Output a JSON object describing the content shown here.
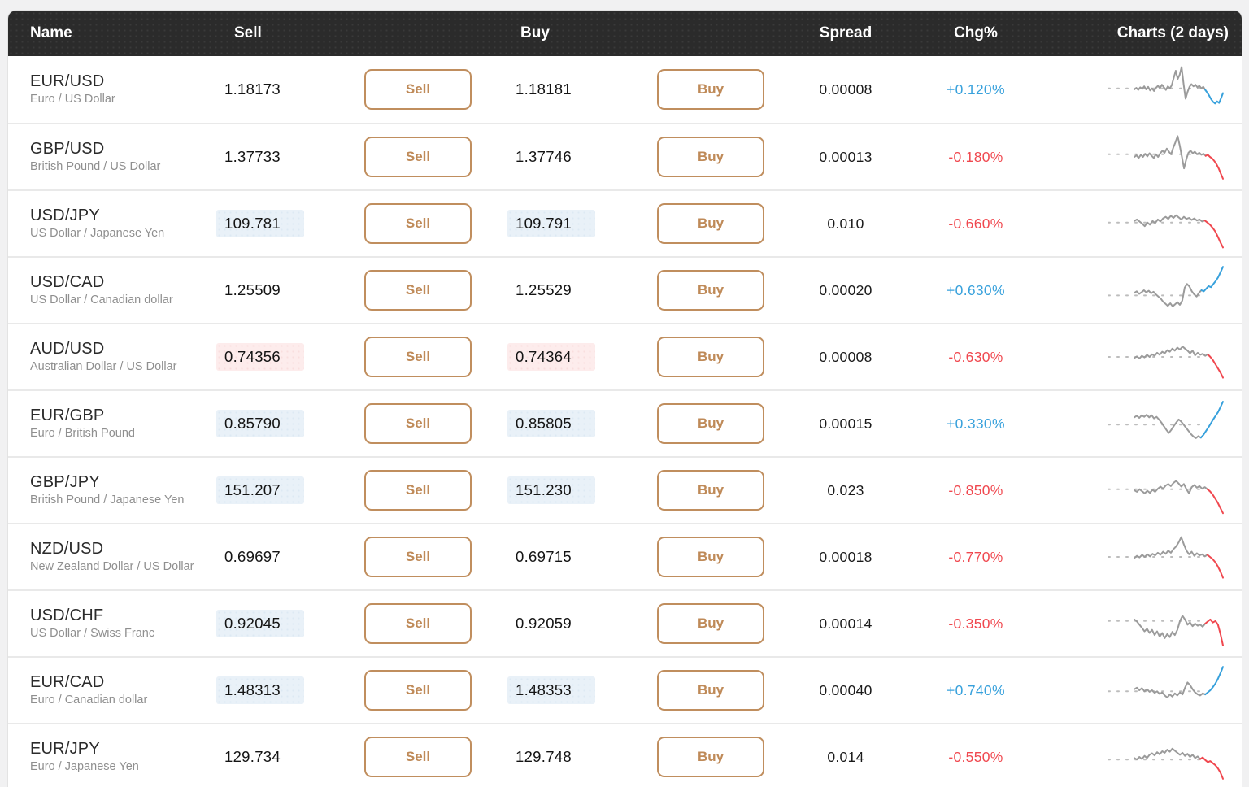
{
  "header": {
    "name": "Name",
    "sell": "Sell",
    "buy": "Buy",
    "spread": "Spread",
    "chg": "Chg%",
    "charts": "Charts (2 days)"
  },
  "buttons": {
    "sell": "Sell",
    "buy": "Buy"
  },
  "colors": {
    "up": "#38a1dc",
    "down": "#f0484f",
    "line": "#9b9b9b",
    "baseline": "#bdbdbd",
    "accent": "#c08e5e",
    "header_bg": "#2b2b2b",
    "highlight_blue": "#e9f1f8",
    "highlight_pink": "#fdecec"
  },
  "rows": [
    {
      "pair": "EUR/USD",
      "subtitle": "Euro / US Dollar",
      "sell": "1.18173",
      "buy": "1.18181",
      "sell_hl": "none",
      "buy_hl": "none",
      "spread": "0.00008",
      "chg": "+0.120%",
      "chg_dir": "up",
      "chart": {
        "baseline": 52,
        "split": 36,
        "points": [
          50,
          53,
          49,
          54,
          51,
          56,
          50,
          55,
          48,
          52,
          47,
          53,
          57,
          52,
          59,
          54,
          49,
          56,
          52,
          58,
          72,
          86,
          70,
          78,
          93,
          60,
          32,
          45,
          55,
          60,
          56,
          59,
          54,
          57,
          52,
          55,
          49,
          44,
          38,
          31,
          26,
          23,
          27,
          24,
          33,
          43
        ]
      }
    },
    {
      "pair": "GBP/USD",
      "subtitle": "British Pound / US Dollar",
      "sell": "1.37733",
      "buy": "1.37746",
      "sell_hl": "none",
      "buy_hl": "none",
      "spread": "0.00013",
      "chg": "-0.180%",
      "chg_dir": "down",
      "chart": {
        "baseline": 55,
        "split": 33,
        "points": [
          50,
          53,
          48,
          54,
          50,
          56,
          51,
          57,
          52,
          48,
          55,
          50,
          57,
          62,
          58,
          66,
          60,
          55,
          68,
          78,
          90,
          72,
          50,
          28,
          45,
          58,
          62,
          57,
          60,
          55,
          58,
          54,
          56,
          52,
          54,
          50,
          47,
          42,
          36,
          28,
          18,
          8
        ]
      }
    },
    {
      "pair": "USD/JPY",
      "subtitle": "US Dollar / Japanese Yen",
      "sell": "109.781",
      "buy": "109.791",
      "sell_hl": "blue",
      "buy_hl": "blue",
      "spread": "0.010",
      "chg": "-0.660%",
      "chg_dir": "down",
      "chart": {
        "baseline": 52,
        "split": 27,
        "points": [
          55,
          58,
          54,
          50,
          45,
          52,
          48,
          55,
          51,
          58,
          54,
          60,
          63,
          59,
          65,
          61,
          66,
          62,
          58,
          63,
          59,
          61,
          57,
          60,
          56,
          58,
          54,
          56,
          52,
          48,
          42,
          35,
          25,
          14,
          4
        ]
      }
    },
    {
      "pair": "USD/CAD",
      "subtitle": "US Dollar / Canadian dollar",
      "sell": "1.25509",
      "buy": "1.25529",
      "sell_hl": "none",
      "buy_hl": "none",
      "spread": "0.00020",
      "chg": "+0.630%",
      "chg_dir": "up",
      "chart": {
        "baseline": 40,
        "split": 28,
        "points": [
          45,
          48,
          43,
          46,
          50,
          46,
          49,
          44,
          47,
          42,
          38,
          34,
          28,
          24,
          20,
          25,
          19,
          23,
          27,
          22,
          30,
          55,
          62,
          57,
          48,
          42,
          38,
          45,
          50,
          48,
          53,
          58,
          56,
          62,
          68,
          75,
          85,
          95
        ]
      }
    },
    {
      "pair": "AUD/USD",
      "subtitle": "Australian Dollar / US Dollar",
      "sell": "0.74356",
      "buy": "0.74364",
      "sell_hl": "pink",
      "buy_hl": "pink",
      "spread": "0.00008",
      "chg": "-0.630%",
      "chg_dir": "down",
      "chart": {
        "baseline": 50,
        "split": 29,
        "points": [
          48,
          51,
          47,
          52,
          49,
          54,
          50,
          55,
          52,
          58,
          54,
          60,
          57,
          63,
          60,
          66,
          62,
          68,
          64,
          70,
          66,
          62,
          57,
          62,
          53,
          58,
          54,
          56,
          52,
          55,
          50,
          44,
          36,
          28,
          20,
          10
        ]
      }
    },
    {
      "pair": "EUR/GBP",
      "subtitle": "Euro / British Pound",
      "sell": "0.85790",
      "buy": "0.85805",
      "sell_hl": "blue",
      "buy_hl": "blue",
      "spread": "0.00015",
      "chg": "+0.330%",
      "chg_dir": "up",
      "chart": {
        "baseline": 48,
        "split": 27,
        "points": [
          62,
          65,
          61,
          66,
          63,
          67,
          62,
          66,
          60,
          63,
          58,
          52,
          45,
          38,
          32,
          38,
          45,
          52,
          58,
          54,
          48,
          42,
          36,
          30,
          25,
          22,
          26,
          23,
          28,
          35,
          42,
          50,
          58,
          65,
          72,
          82,
          92
        ]
      }
    },
    {
      "pair": "GBP/JPY",
      "subtitle": "British Pound / Japanese Yen",
      "sell": "151.207",
      "buy": "151.230",
      "sell_hl": "blue",
      "buy_hl": "blue",
      "spread": "0.023",
      "chg": "-0.850%",
      "chg_dir": "down",
      "chart": {
        "baseline": 52,
        "split": 28,
        "points": [
          50,
          47,
          52,
          48,
          44,
          49,
          45,
          51,
          47,
          53,
          57,
          53,
          59,
          62,
          58,
          64,
          68,
          63,
          57,
          62,
          52,
          44,
          56,
          60,
          55,
          58,
          53,
          56,
          52,
          48,
          42,
          34,
          26,
          16,
          6
        ]
      }
    },
    {
      "pair": "NZD/USD",
      "subtitle": "New Zealand Dollar / US Dollar",
      "sell": "0.69697",
      "buy": "0.69715",
      "sell_hl": "none",
      "buy_hl": "none",
      "spread": "0.00018",
      "chg": "-0.770%",
      "chg_dir": "down",
      "chart": {
        "baseline": 50,
        "split": 28,
        "points": [
          48,
          52,
          49,
          54,
          50,
          55,
          51,
          56,
          53,
          58,
          54,
          60,
          56,
          62,
          58,
          65,
          70,
          78,
          88,
          74,
          62,
          55,
          60,
          52,
          57,
          53,
          55,
          51,
          54,
          50,
          46,
          40,
          32,
          22,
          10
        ]
      }
    },
    {
      "pair": "USD/CHF",
      "subtitle": "US Dollar / Swiss Franc",
      "sell": "0.92045",
      "buy": "0.92059",
      "sell_hl": "blue",
      "buy_hl": "none",
      "spread": "0.00014",
      "chg": "-0.350%",
      "chg_dir": "down",
      "chart": {
        "baseline": 55,
        "split": 28,
        "points": [
          58,
          54,
          48,
          42,
          35,
          40,
          32,
          38,
          28,
          35,
          25,
          32,
          22,
          30,
          24,
          34,
          28,
          38,
          55,
          65,
          58,
          48,
          52,
          45,
          50,
          46,
          48,
          44,
          50,
          54,
          58,
          52,
          55,
          48,
          30,
          8
        ]
      }
    },
    {
      "pair": "EUR/CAD",
      "subtitle": "Euro / Canadian dollar",
      "sell": "1.48313",
      "buy": "1.48353",
      "sell_hl": "blue",
      "buy_hl": "blue",
      "spread": "0.00040",
      "chg": "+0.740%",
      "chg_dir": "up",
      "chart": {
        "baseline": 48,
        "split": 28,
        "points": [
          52,
          55,
          50,
          54,
          48,
          52,
          47,
          50,
          45,
          48,
          43,
          46,
          40,
          36,
          42,
          38,
          44,
          40,
          46,
          42,
          55,
          65,
          60,
          52,
          46,
          42,
          40,
          44,
          42,
          46,
          50,
          56,
          63,
          72,
          83,
          95
        ]
      }
    },
    {
      "pair": "EUR/JPY",
      "subtitle": "Euro / Japanese Yen",
      "sell": "129.734",
      "buy": "129.748",
      "sell_hl": "none",
      "buy_hl": "none",
      "spread": "0.014",
      "chg": "-0.550%",
      "chg_dir": "down",
      "chart": {
        "baseline": 45,
        "split": 26,
        "points": [
          48,
          45,
          50,
          46,
          52,
          48,
          54,
          57,
          53,
          59,
          55,
          61,
          58,
          64,
          60,
          66,
          62,
          58,
          54,
          58,
          52,
          56,
          50,
          54,
          48,
          51,
          46,
          49,
          44,
          40,
          42,
          38,
          34,
          28,
          20,
          8
        ]
      }
    }
  ]
}
